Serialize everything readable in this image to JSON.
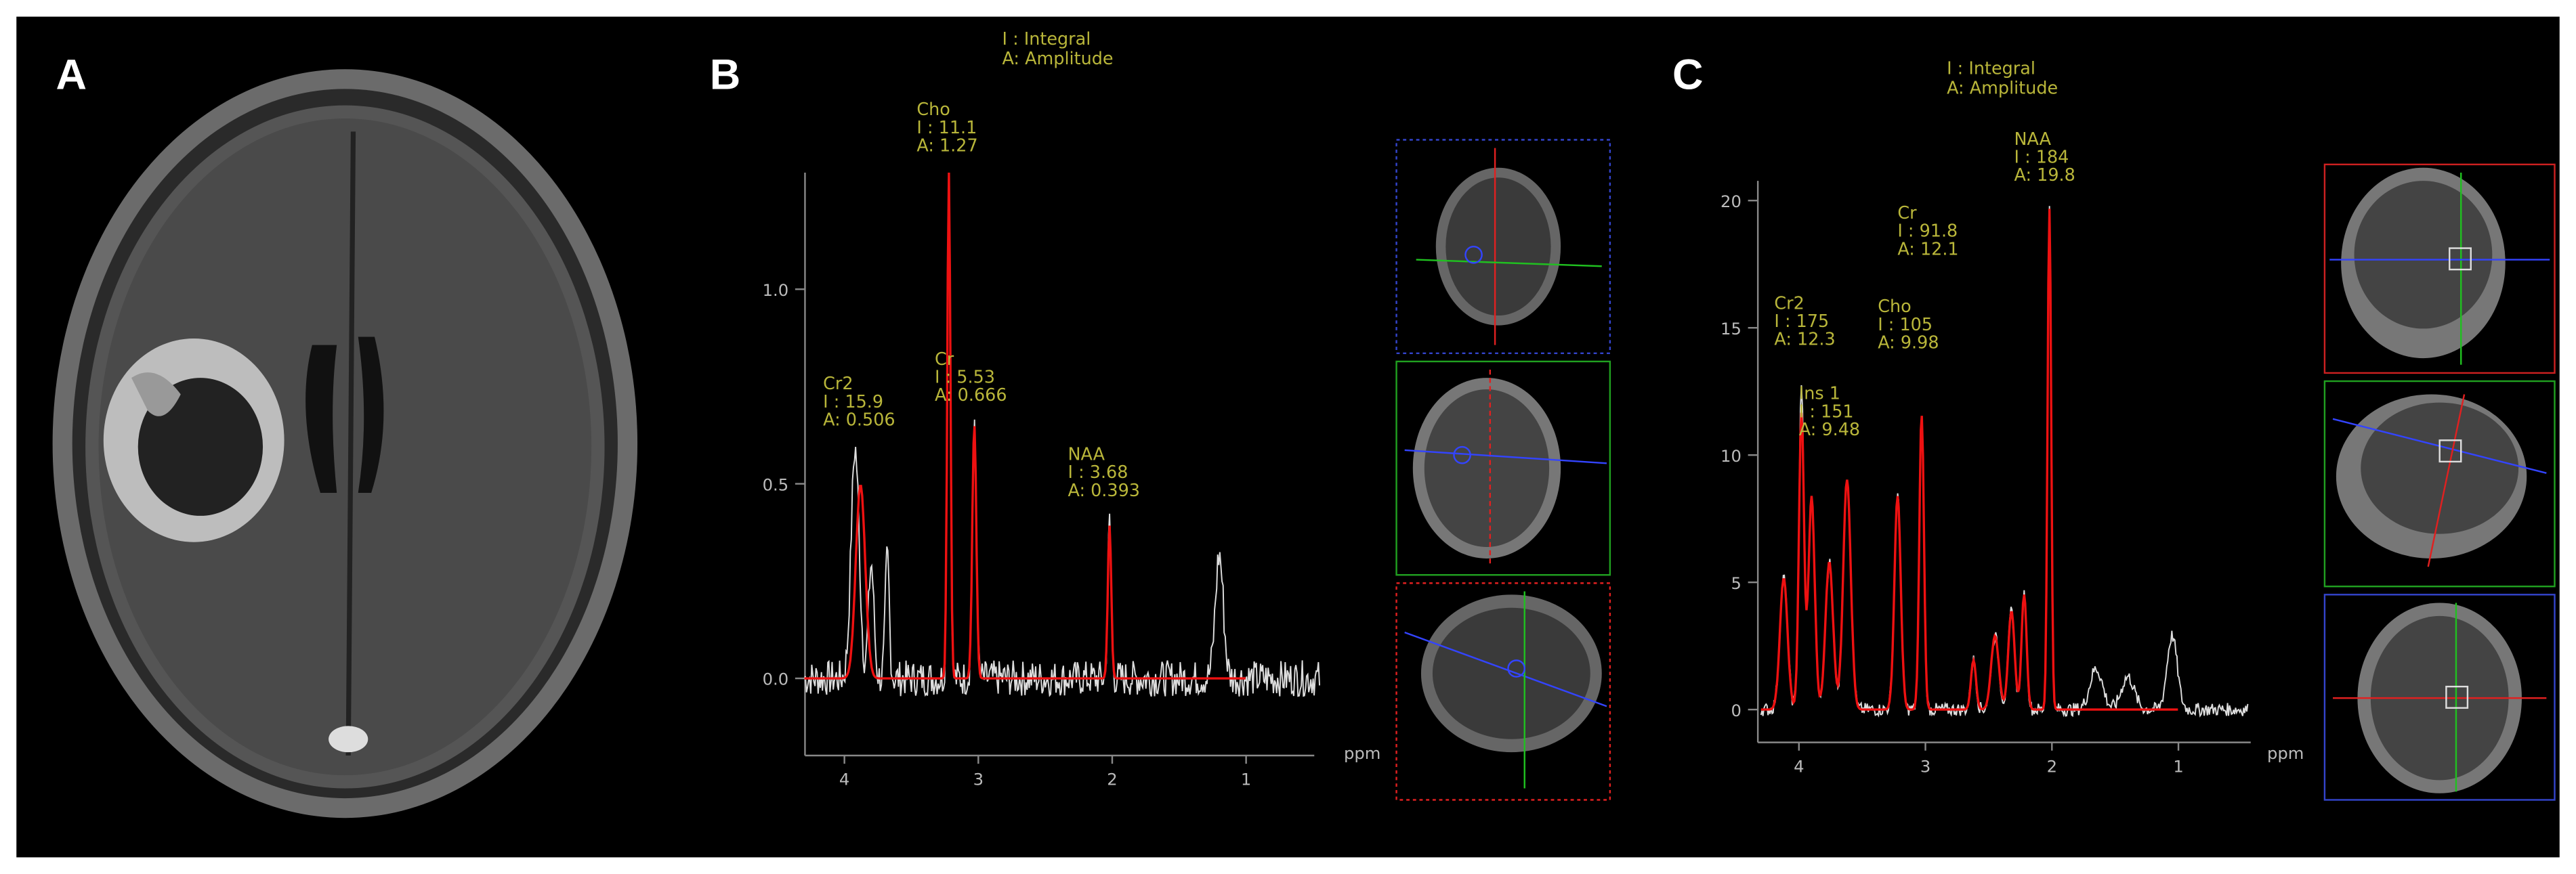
{
  "panels": {
    "A": {
      "label": "A"
    },
    "B": {
      "label": "B",
      "legend": [
        "I : Integral",
        "A: Amplitude"
      ],
      "x_unit": "ppm",
      "x_ticks": [
        4,
        3,
        2,
        1
      ],
      "y_ticks": [
        {
          "value": 1,
          "label": "1.0"
        },
        {
          "value": 0.5,
          "label": "0.5"
        },
        {
          "value": 0,
          "label": "0.0"
        }
      ],
      "annotations": [
        {
          "lines": [
            "Cho",
            "I : 11.1",
            "A: 1.27"
          ]
        },
        {
          "lines": [
            "Cr2",
            "I : 15.9",
            "A: 0.506"
          ]
        },
        {
          "lines": [
            "Cr",
            "I : 5.53",
            "A: 0.666"
          ]
        },
        {
          "lines": [
            "NAA",
            "I : 3.68",
            "A: 0.393"
          ]
        }
      ]
    },
    "C": {
      "label": "C",
      "legend": [
        "I : Integral",
        "A: Amplitude"
      ],
      "x_unit": "ppm",
      "x_ticks": [
        4,
        3,
        2,
        1
      ],
      "y_ticks": [
        20,
        15,
        10,
        5,
        0
      ],
      "annotations": [
        {
          "lines": [
            "NAA",
            "I : 184",
            "A: 19.8"
          ]
        },
        {
          "lines": [
            "Cr",
            "I : 91.8",
            "A: 12.1"
          ]
        },
        {
          "lines": [
            "Cr2",
            "I : 175",
            "A: 12.3"
          ]
        },
        {
          "lines": [
            "Cho",
            "I : 105",
            "A: 9.98"
          ]
        },
        {
          "lines": [
            "Ins 1",
            "I : 151",
            "A: 9.48"
          ]
        }
      ]
    }
  }
}
